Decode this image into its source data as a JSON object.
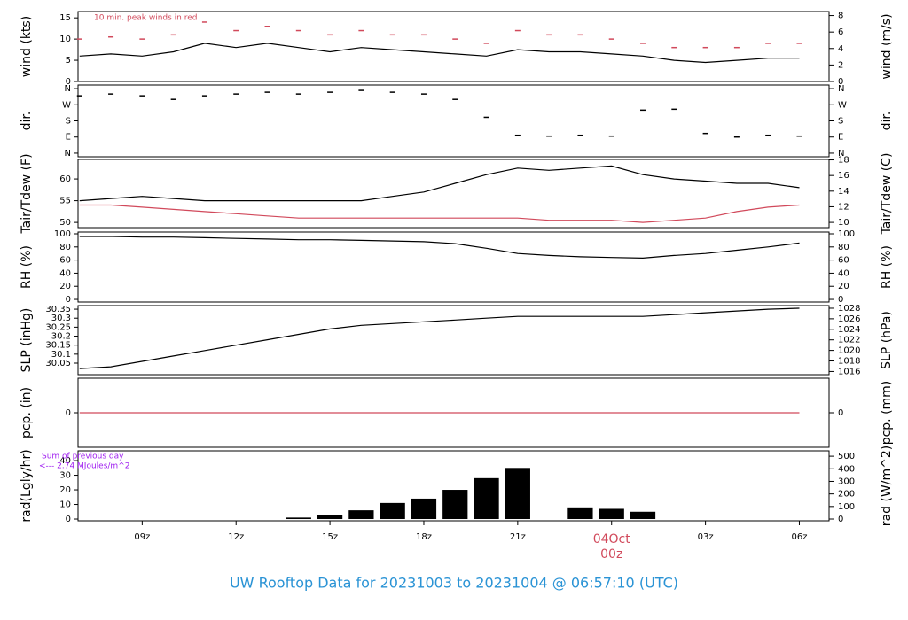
{
  "title": "UW Rooftop Data for 20231003  to  20231004 @ 06:57:10  (UTC)",
  "time_axis": {
    "xlim": [
      6.95,
      30.95
    ],
    "xticks": [
      {
        "value": 9,
        "label": "09z"
      },
      {
        "value": 12,
        "label": "12z"
      },
      {
        "value": 15,
        "label": "15z"
      },
      {
        "value": 18,
        "label": "18z"
      },
      {
        "value": 21,
        "label": "21z"
      },
      {
        "value": 24,
        "label": "00z",
        "color": "#d1495b"
      },
      {
        "value": 27,
        "label": "03z"
      },
      {
        "value": 30,
        "label": "06z"
      }
    ],
    "date_label": "04Oct",
    "x": [
      7,
      8,
      9,
      10,
      11,
      12,
      13,
      14,
      15,
      16,
      17,
      18,
      19,
      20,
      21,
      22,
      23,
      24,
      25,
      26,
      27,
      28,
      29,
      30
    ]
  },
  "chart_data": [
    {
      "type": "line",
      "ylabel": "wind (kts)",
      "y2label": "wind (m/s)",
      "annotation": "10 min. peak winds in red",
      "ylim": [
        0,
        16.5
      ],
      "yticks": [
        0,
        5,
        10,
        15
      ],
      "y2lim": [
        0,
        8.49
      ],
      "y2ticks": [
        0,
        2,
        4,
        6,
        8
      ],
      "series": [
        {
          "color": "#000000",
          "style": "line",
          "values": [
            6,
            6.5,
            6,
            7,
            9,
            8,
            9,
            8,
            7,
            8,
            7.5,
            7,
            6.5,
            6,
            7.5,
            7,
            7,
            6.5,
            6,
            5,
            4.5,
            5,
            5.5,
            5.5
          ]
        },
        {
          "color": "#d1495b",
          "style": "dash",
          "values": [
            10,
            10.5,
            10,
            11,
            14,
            12,
            13,
            12,
            11,
            12,
            11,
            11,
            10,
            9,
            12,
            11,
            11,
            10,
            9,
            8,
            8,
            8,
            9,
            9
          ]
        }
      ]
    },
    {
      "type": "scatter",
      "ylabel": "dir.",
      "y2label": "dir.",
      "ylim": [
        -20,
        380
      ],
      "yticks": [
        {
          "value": 0,
          "label": "N"
        },
        {
          "value": 90,
          "label": "E"
        },
        {
          "value": 180,
          "label": "S"
        },
        {
          "value": 270,
          "label": "W"
        },
        {
          "value": 360,
          "label": "N"
        }
      ],
      "y2lim": [
        -20,
        380
      ],
      "y2ticks": [
        {
          "value": 0,
          "label": "N"
        },
        {
          "value": 90,
          "label": "E"
        },
        {
          "value": 180,
          "label": "S"
        },
        {
          "value": 270,
          "label": "W"
        },
        {
          "value": 360,
          "label": "N"
        }
      ],
      "series": [
        {
          "color": "#000000",
          "style": "dash",
          "values": [
            320,
            330,
            320,
            300,
            320,
            330,
            340,
            330,
            340,
            350,
            340,
            330,
            300,
            200,
            100,
            95,
            100,
            95,
            240,
            245,
            110,
            90,
            100,
            95
          ]
        }
      ]
    },
    {
      "type": "line",
      "ylabel": "Tair/Tdew (F)",
      "y2label": "Tair/Tdew (C)",
      "ylim": [
        48.8,
        64.5
      ],
      "yticks": [
        50,
        55,
        60
      ],
      "y2lim": [
        9.33,
        18.06
      ],
      "y2ticks": [
        10,
        12,
        14,
        16,
        18
      ],
      "series": [
        {
          "color": "#000000",
          "style": "line",
          "values": [
            55,
            55.5,
            56,
            55.5,
            55,
            55,
            55,
            55,
            55,
            55,
            56,
            57,
            59,
            61,
            62.5,
            62,
            62.5,
            63,
            61,
            60,
            59.5,
            59,
            59,
            58
          ]
        },
        {
          "color": "#d1495b",
          "style": "line",
          "values": [
            54,
            54,
            53.5,
            53,
            52.5,
            52,
            51.5,
            51,
            51,
            51,
            51,
            51,
            51,
            51,
            51,
            50.5,
            50.5,
            50.5,
            50,
            50.5,
            51,
            52.5,
            53.5,
            54
          ]
        }
      ]
    },
    {
      "type": "line",
      "ylabel": "RH (%)",
      "y2label": "RH (%)",
      "ylim": [
        -4,
        102.7
      ],
      "yticks": [
        0,
        20,
        40,
        60,
        80,
        100
      ],
      "y2lim": [
        -4,
        102.7
      ],
      "y2ticks": [
        0,
        20,
        40,
        60,
        80,
        100
      ],
      "series": [
        {
          "color": "#000000",
          "style": "line",
          "values": [
            96,
            96,
            95,
            95,
            94,
            93,
            92,
            91,
            91,
            90,
            89,
            88,
            85,
            78,
            70,
            67,
            65,
            64,
            63,
            67,
            70,
            75,
            80,
            86
          ]
        }
      ]
    },
    {
      "type": "line",
      "ylabel": "SLP (inHg)",
      "y2label": "SLP (hPa)",
      "ylim": [
        29.986,
        30.37
      ],
      "yticks": [
        30.05,
        30.1,
        30.15,
        30.2,
        30.25,
        30.3,
        30.35
      ],
      "y2lim": [
        1015.4,
        1028.5
      ],
      "y2ticks": [
        1016,
        1018,
        1020,
        1022,
        1024,
        1026,
        1028
      ],
      "series": [
        {
          "color": "#000000",
          "style": "line",
          "values": [
            30.02,
            30.03,
            30.06,
            30.09,
            30.12,
            30.15,
            30.18,
            30.21,
            30.24,
            30.26,
            30.27,
            30.28,
            30.29,
            30.3,
            30.31,
            30.31,
            30.31,
            30.31,
            30.31,
            30.32,
            30.33,
            30.34,
            30.35,
            30.355
          ]
        }
      ]
    },
    {
      "type": "line",
      "ylabel": "pcp. (in)",
      "y2label": "pcp. (mm)",
      "ylim": [
        -1,
        1
      ],
      "yticks": [
        0
      ],
      "y2lim": [
        -25.4,
        25.4
      ],
      "y2ticks": [
        0
      ],
      "series": [
        {
          "color": "#d1495b",
          "style": "line",
          "values": [
            0,
            0,
            0,
            0,
            0,
            0,
            0,
            0,
            0,
            0,
            0,
            0,
            0,
            0,
            0,
            0,
            0,
            0,
            0,
            0,
            0,
            0,
            0,
            0
          ]
        }
      ]
    },
    {
      "type": "bar",
      "ylabel": "rad(Lgly/hr)",
      "y2label": "rad (W/m^2)",
      "annotation": "Sum of previous day",
      "annotation2": "<--- 2.74 MJoules/m^2",
      "ylim": [
        -1.2,
        46.7
      ],
      "yticks": [
        0,
        10,
        20,
        30,
        40
      ],
      "y2lim": [
        -14,
        543
      ],
      "y2ticks": [
        0,
        100,
        200,
        300,
        400,
        500
      ],
      "series": [
        {
          "color": "#000000",
          "style": "bar",
          "values": [
            0,
            0,
            0,
            0,
            0,
            0,
            0,
            1,
            3,
            6,
            11,
            14,
            20,
            28,
            35,
            0,
            8,
            7,
            5,
            0,
            0,
            0,
            0,
            0
          ]
        }
      ]
    }
  ]
}
